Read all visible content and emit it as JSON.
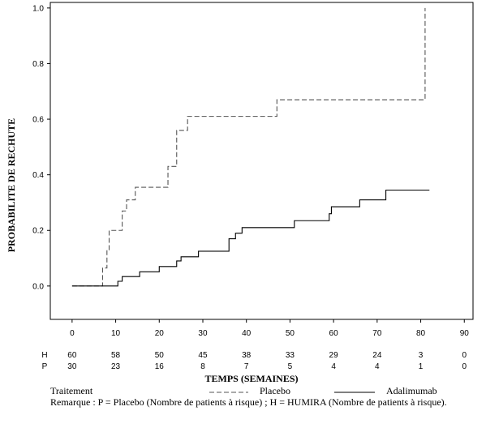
{
  "chart_data": {
    "type": "line",
    "step": true,
    "title": "",
    "xlabel": "TEMPS (SEMAINES)",
    "ylabel": "PROBABILITE DE RECHUTE",
    "xlim": [
      -5,
      92
    ],
    "ylim": [
      -0.12,
      1.02
    ],
    "xticks": [
      0,
      10,
      20,
      30,
      40,
      50,
      60,
      70,
      80,
      90
    ],
    "yticks": [
      0.0,
      0.2,
      0.4,
      0.6,
      0.8,
      1.0
    ],
    "ytick_labels": [
      "0.0",
      "0.2",
      "0.4",
      "0.6",
      "0.8",
      "1.0"
    ],
    "grid": false,
    "series": [
      {
        "name": "Placebo",
        "style": "dashed",
        "color": "#555555",
        "points": [
          [
            0,
            0.0
          ],
          [
            7,
            0.0
          ],
          [
            7,
            0.065
          ],
          [
            8,
            0.065
          ],
          [
            8,
            0.13
          ],
          [
            8.5,
            0.13
          ],
          [
            8.5,
            0.2
          ],
          [
            11.5,
            0.2
          ],
          [
            11.5,
            0.27
          ],
          [
            12.5,
            0.27
          ],
          [
            12.5,
            0.31
          ],
          [
            14.5,
            0.31
          ],
          [
            14.5,
            0.355
          ],
          [
            22,
            0.355
          ],
          [
            22,
            0.43
          ],
          [
            24,
            0.43
          ],
          [
            24,
            0.56
          ],
          [
            26.5,
            0.56
          ],
          [
            26.5,
            0.61
          ],
          [
            47,
            0.61
          ],
          [
            47,
            0.67
          ],
          [
            81,
            0.67
          ],
          [
            81,
            1.0
          ]
        ]
      },
      {
        "name": "Adalimumab",
        "style": "solid",
        "color": "#000000",
        "points": [
          [
            0,
            0.0
          ],
          [
            10.5,
            0.0
          ],
          [
            10.5,
            0.017
          ],
          [
            11.5,
            0.017
          ],
          [
            11.5,
            0.034
          ],
          [
            15.5,
            0.034
          ],
          [
            15.5,
            0.051
          ],
          [
            20,
            0.051
          ],
          [
            20,
            0.07
          ],
          [
            24,
            0.07
          ],
          [
            24,
            0.09
          ],
          [
            25,
            0.09
          ],
          [
            25,
            0.105
          ],
          [
            29,
            0.105
          ],
          [
            29,
            0.125
          ],
          [
            36,
            0.125
          ],
          [
            36,
            0.17
          ],
          [
            37.5,
            0.17
          ],
          [
            37.5,
            0.19
          ],
          [
            39,
            0.19
          ],
          [
            39,
            0.21
          ],
          [
            51,
            0.21
          ],
          [
            51,
            0.235
          ],
          [
            59,
            0.235
          ],
          [
            59,
            0.26
          ],
          [
            59.5,
            0.26
          ],
          [
            59.5,
            0.285
          ],
          [
            66,
            0.285
          ],
          [
            66,
            0.31
          ],
          [
            72,
            0.31
          ],
          [
            72,
            0.345
          ],
          [
            82,
            0.345
          ]
        ]
      }
    ],
    "risk_table": {
      "x": [
        0,
        10,
        20,
        30,
        40,
        50,
        60,
        70,
        80,
        90
      ],
      "rows": [
        {
          "label": "H",
          "values": [
            "60",
            "58",
            "50",
            "45",
            "38",
            "33",
            "29",
            "24",
            "3",
            "0"
          ]
        },
        {
          "label": "P",
          "values": [
            "30",
            "23",
            "16",
            "8",
            "7",
            "5",
            "4",
            "4",
            "1",
            "0"
          ]
        }
      ]
    },
    "legend": {
      "title": "Traitement",
      "placement": "bottom",
      "entries": [
        {
          "label": "Placebo",
          "style": "dashed"
        },
        {
          "label": "Adalimumab",
          "style": "solid"
        }
      ]
    }
  },
  "note": "Remarque : P = Placebo (Nombre de patients à risque) ; H = HUMIRA (Nombre de patients à risque)."
}
